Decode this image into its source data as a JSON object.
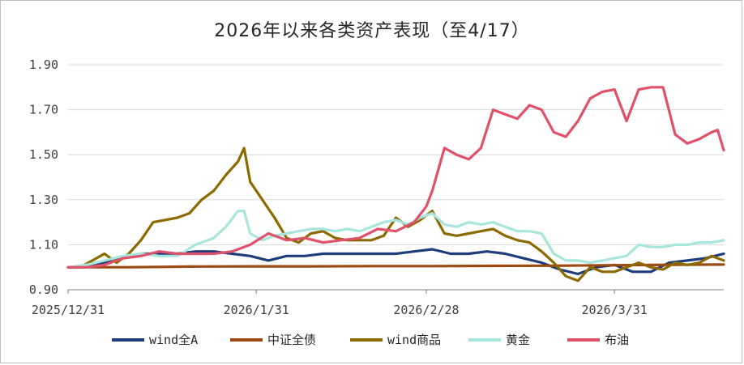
{
  "chart_data": {
    "type": "line",
    "title": "2026年以来各类资产表现（至4/17）",
    "xlabel": "",
    "ylabel": "",
    "ylim": [
      0.9,
      1.9
    ],
    "yticks": [
      "0.90",
      "1.10",
      "1.30",
      "1.50",
      "1.70",
      "1.90"
    ],
    "xticks": [
      "2025/12/31",
      "2026/1/31",
      "2026/2/28",
      "2026/3/31"
    ],
    "x_range_days": [
      0,
      108
    ],
    "x_tick_days": [
      0,
      31,
      59,
      90
    ],
    "grid": "horizontal",
    "legend_position": "bottom",
    "series": [
      {
        "name": "wind全A",
        "color": "#1f3d7a",
        "x": [
          0,
          3,
          6,
          9,
          12,
          15,
          18,
          21,
          24,
          27,
          30,
          33,
          36,
          39,
          42,
          45,
          48,
          51,
          54,
          57,
          60,
          63,
          66,
          69,
          72,
          75,
          78,
          81,
          84,
          87,
          90,
          93,
          96,
          99,
          102,
          105,
          108
        ],
        "y": [
          1.0,
          1.0,
          1.02,
          1.04,
          1.06,
          1.06,
          1.06,
          1.07,
          1.07,
          1.06,
          1.05,
          1.03,
          1.05,
          1.05,
          1.06,
          1.06,
          1.06,
          1.06,
          1.06,
          1.07,
          1.08,
          1.06,
          1.06,
          1.07,
          1.06,
          1.04,
          1.02,
          0.99,
          0.97,
          1.0,
          1.01,
          0.98,
          0.98,
          1.02,
          1.03,
          1.04,
          1.06
        ]
      },
      {
        "name": "中证全债",
        "color": "#9c4a12",
        "x": [
          0,
          10,
          20,
          30,
          40,
          50,
          60,
          70,
          80,
          90,
          100,
          108
        ],
        "y": [
          1.0,
          1.0,
          1.003,
          1.004,
          1.004,
          1.005,
          1.005,
          1.006,
          1.007,
          1.009,
          1.011,
          1.012
        ]
      },
      {
        "name": "wind商品",
        "color": "#8c6a00",
        "x": [
          0,
          2,
          4,
          6,
          8,
          10,
          12,
          14,
          16,
          18,
          20,
          22,
          24,
          26,
          28,
          29,
          30,
          32,
          34,
          36,
          38,
          40,
          42,
          44,
          46,
          48,
          50,
          52,
          54,
          56,
          58,
          60,
          62,
          64,
          66,
          68,
          70,
          72,
          74,
          76,
          78,
          80,
          82,
          84,
          86,
          88,
          90,
          92,
          94,
          96,
          98,
          100,
          102,
          104,
          106,
          108
        ],
        "y": [
          1.0,
          1.0,
          1.03,
          1.06,
          1.02,
          1.06,
          1.12,
          1.2,
          1.21,
          1.22,
          1.24,
          1.3,
          1.34,
          1.41,
          1.47,
          1.53,
          1.38,
          1.3,
          1.22,
          1.13,
          1.11,
          1.15,
          1.16,
          1.13,
          1.12,
          1.12,
          1.12,
          1.14,
          1.22,
          1.18,
          1.21,
          1.25,
          1.15,
          1.14,
          1.15,
          1.16,
          1.17,
          1.14,
          1.12,
          1.11,
          1.07,
          1.02,
          0.96,
          0.94,
          1.0,
          0.98,
          0.98,
          1.0,
          1.02,
          1.0,
          0.99,
          1.02,
          1.01,
          1.02,
          1.05,
          1.03
        ]
      },
      {
        "name": "黄金",
        "color": "#a8e6dc",
        "x": [
          0,
          3,
          6,
          9,
          12,
          15,
          18,
          21,
          24,
          26,
          28,
          29,
          30,
          32,
          34,
          36,
          38,
          40,
          42,
          44,
          46,
          48,
          50,
          52,
          54,
          56,
          58,
          60,
          62,
          64,
          66,
          68,
          70,
          72,
          74,
          76,
          78,
          80,
          82,
          84,
          86,
          88,
          90,
          92,
          94,
          96,
          98,
          100,
          102,
          104,
          106,
          108
        ],
        "y": [
          1.0,
          1.01,
          1.03,
          1.05,
          1.06,
          1.05,
          1.05,
          1.1,
          1.13,
          1.18,
          1.25,
          1.25,
          1.15,
          1.12,
          1.14,
          1.15,
          1.16,
          1.17,
          1.17,
          1.16,
          1.17,
          1.16,
          1.18,
          1.2,
          1.21,
          1.19,
          1.22,
          1.24,
          1.19,
          1.18,
          1.2,
          1.19,
          1.2,
          1.18,
          1.16,
          1.16,
          1.15,
          1.06,
          1.03,
          1.03,
          1.02,
          1.03,
          1.04,
          1.05,
          1.1,
          1.09,
          1.09,
          1.1,
          1.1,
          1.11,
          1.11,
          1.12
        ]
      },
      {
        "name": "布油",
        "color": "#e0516a",
        "x": [
          0,
          3,
          6,
          9,
          12,
          15,
          18,
          21,
          24,
          27,
          30,
          33,
          36,
          39,
          42,
          45,
          48,
          51,
          54,
          57,
          59,
          60,
          62,
          64,
          66,
          68,
          70,
          72,
          74,
          76,
          78,
          80,
          82,
          84,
          86,
          88,
          90,
          92,
          94,
          96,
          98,
          100,
          102,
          104,
          106,
          107,
          108
        ],
        "y": [
          1.0,
          1.0,
          1.01,
          1.04,
          1.05,
          1.07,
          1.06,
          1.06,
          1.06,
          1.07,
          1.1,
          1.15,
          1.12,
          1.13,
          1.11,
          1.12,
          1.13,
          1.17,
          1.16,
          1.2,
          1.27,
          1.34,
          1.53,
          1.5,
          1.48,
          1.53,
          1.7,
          1.68,
          1.66,
          1.72,
          1.7,
          1.6,
          1.58,
          1.65,
          1.75,
          1.78,
          1.79,
          1.65,
          1.79,
          1.8,
          1.8,
          1.59,
          1.55,
          1.57,
          1.6,
          1.61,
          1.52
        ]
      }
    ]
  }
}
